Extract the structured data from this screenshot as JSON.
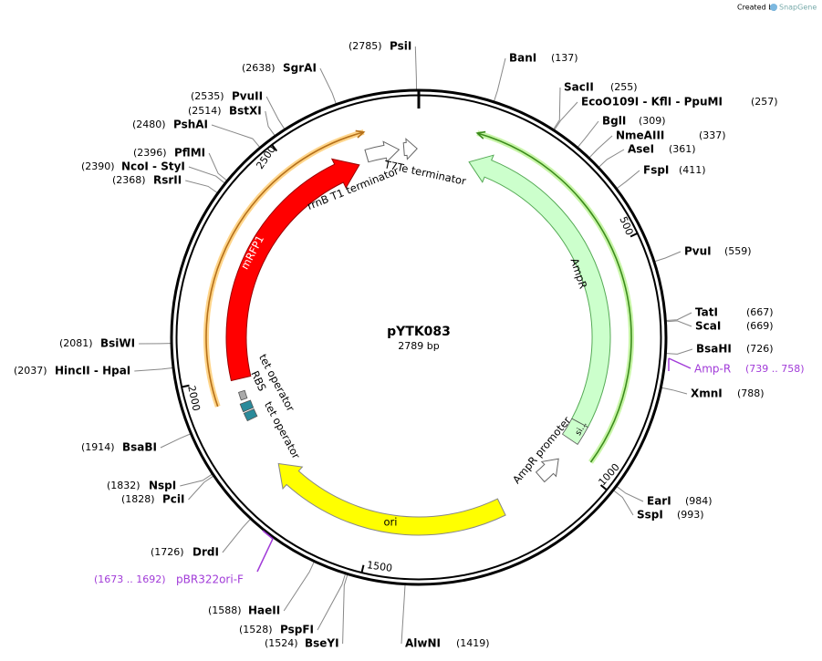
{
  "watermark": {
    "prefix": "Created by",
    "brand": "SnapGene"
  },
  "plasmid": {
    "name": "pYTK083",
    "length": {
      "value": 2789,
      "label": "2789 bp"
    }
  },
  "ruler": [
    500,
    1000,
    1500,
    2000,
    2500
  ],
  "sites": [
    {
      "name": "PsiI",
      "position": {
        "value": 2785,
        "label": "(2785)"
      }
    },
    {
      "name": "BanI",
      "position": {
        "value": 137,
        "label": "(137)"
      }
    },
    {
      "name": "SacII",
      "position": {
        "value": 255,
        "label": "(255)"
      }
    },
    {
      "name": "EcoO109I  - KflI  - PpuMI",
      "position": {
        "value": 257,
        "label": "(257)"
      }
    },
    {
      "name": "BglI",
      "position": {
        "value": 309,
        "label": "(309)"
      }
    },
    {
      "name": "NmeAIII",
      "position": {
        "value": 337,
        "label": "(337)"
      }
    },
    {
      "name": "AseI",
      "position": {
        "value": 361,
        "label": "(361)"
      }
    },
    {
      "name": "FspI",
      "position": {
        "value": 411,
        "label": "(411)"
      }
    },
    {
      "name": "PvuI",
      "position": {
        "value": 559,
        "label": "(559)"
      }
    },
    {
      "name": "TatI",
      "position": {
        "value": 667,
        "label": "(667)"
      }
    },
    {
      "name": "ScaI",
      "position": {
        "value": 669,
        "label": "(669)"
      }
    },
    {
      "name": "BsaHI",
      "position": {
        "value": 726,
        "label": "(726)"
      }
    },
    {
      "name": "XmnI",
      "position": {
        "value": 788,
        "label": "(788)"
      }
    },
    {
      "name": "EarI",
      "position": {
        "value": 984,
        "label": "(984)"
      }
    },
    {
      "name": "SspI",
      "position": {
        "value": 993,
        "label": "(993)"
      }
    },
    {
      "name": "AlwNI",
      "position": {
        "value": 1419,
        "label": "(1419)"
      }
    },
    {
      "name": "BseYI",
      "position": {
        "value": 1524,
        "label": "(1524)"
      }
    },
    {
      "name": "PspFI",
      "position": {
        "value": 1528,
        "label": "(1528)"
      }
    },
    {
      "name": "HaeII",
      "position": {
        "value": 1588,
        "label": "(1588)"
      }
    },
    {
      "name": "DrdI",
      "position": {
        "value": 1726,
        "label": "(1726)"
      }
    },
    {
      "name": "PciI",
      "position": {
        "value": 1828,
        "label": "(1828)"
      }
    },
    {
      "name": "NspI",
      "position": {
        "value": 1832,
        "label": "(1832)"
      }
    },
    {
      "name": "BsaBI",
      "position": {
        "value": 1914,
        "label": "(1914)"
      }
    },
    {
      "name": "HincII  - HpaI",
      "position": {
        "value": 2037,
        "label": "(2037)"
      }
    },
    {
      "name": "BsiWI",
      "position": {
        "value": 2081,
        "label": "(2081)"
      }
    },
    {
      "name": "RsrII",
      "position": {
        "value": 2368,
        "label": "(2368)"
      }
    },
    {
      "name": "NcoI  - StyI",
      "position": {
        "value": 2390,
        "label": "(2390)"
      }
    },
    {
      "name": "PflMI",
      "position": {
        "value": 2396,
        "label": "(2396)"
      }
    },
    {
      "name": "PshAI",
      "position": {
        "value": 2480,
        "label": "(2480)"
      }
    },
    {
      "name": "BstXI",
      "position": {
        "value": 2514,
        "label": "(2514)"
      }
    },
    {
      "name": "PvuII",
      "position": {
        "value": 2535,
        "label": "(2535)"
      }
    },
    {
      "name": "SgrAI",
      "position": {
        "value": 2638,
        "label": "(2638)"
      }
    }
  ],
  "features": {
    "ampr": "AmpR",
    "mrfp1": "mRFP1",
    "ori": "ori",
    "rrnb": "rrnB T1 terminator",
    "t7te": "T7Te terminator",
    "tet_operator_1": "tet operator",
    "rbs": "RBS",
    "tet_operator_2": "tet operator",
    "ampr_promoter": "AmpR promoter",
    "signal": "si..."
  },
  "primers": [
    {
      "name": "Amp-R",
      "range": "(739 .. 758)"
    },
    {
      "name": "pBR322ori-F",
      "range": "(1673 .. 1692)"
    }
  ]
}
